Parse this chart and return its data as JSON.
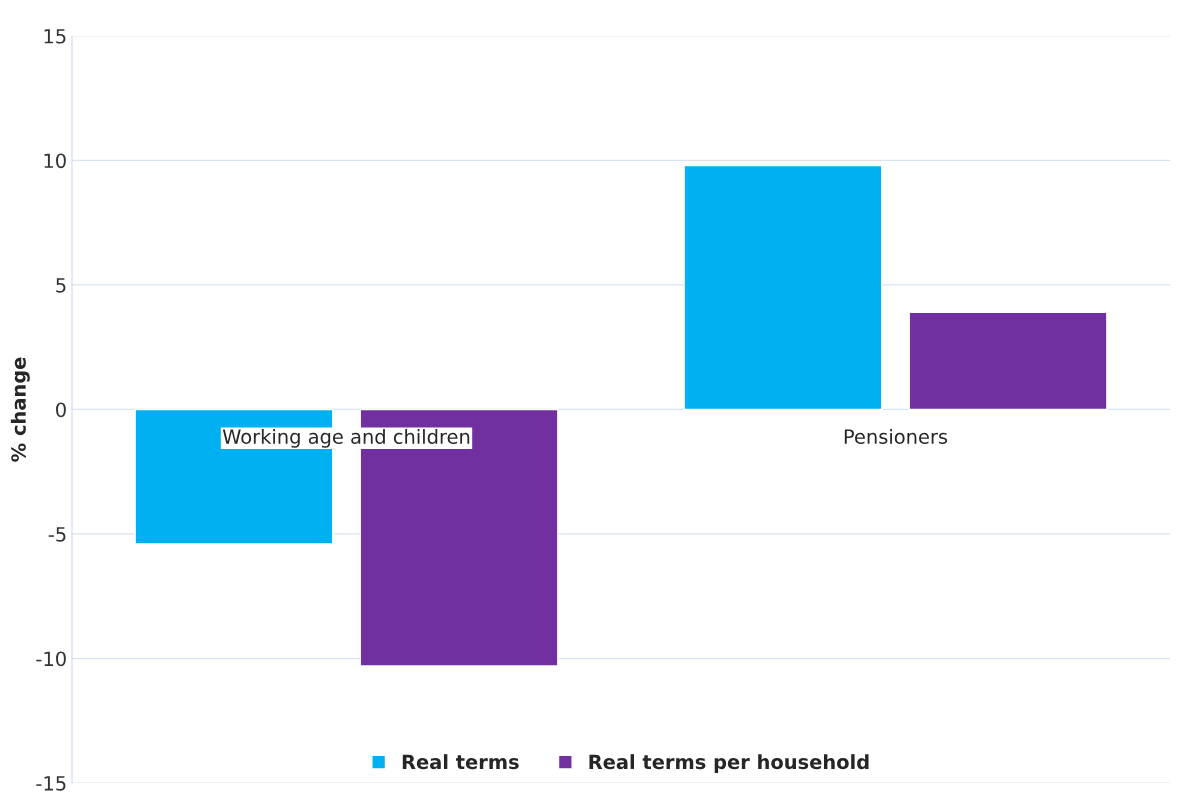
{
  "chart_data": {
    "type": "bar",
    "ylabel": "% change",
    "categories": [
      "Working age and children",
      "Pensioners"
    ],
    "series": [
      {
        "name": "Real terms",
        "color": "#00b0f0",
        "values": [
          -5.4,
          9.8
        ]
      },
      {
        "name": "Real terms per household",
        "color": "#7030a0",
        "values": [
          -10.3,
          3.9
        ]
      }
    ],
    "ylim": [
      -15,
      15
    ],
    "yticks": [
      -15,
      -10,
      -5,
      0,
      5,
      10,
      15
    ],
    "grid": "y",
    "legend": "bottom"
  }
}
